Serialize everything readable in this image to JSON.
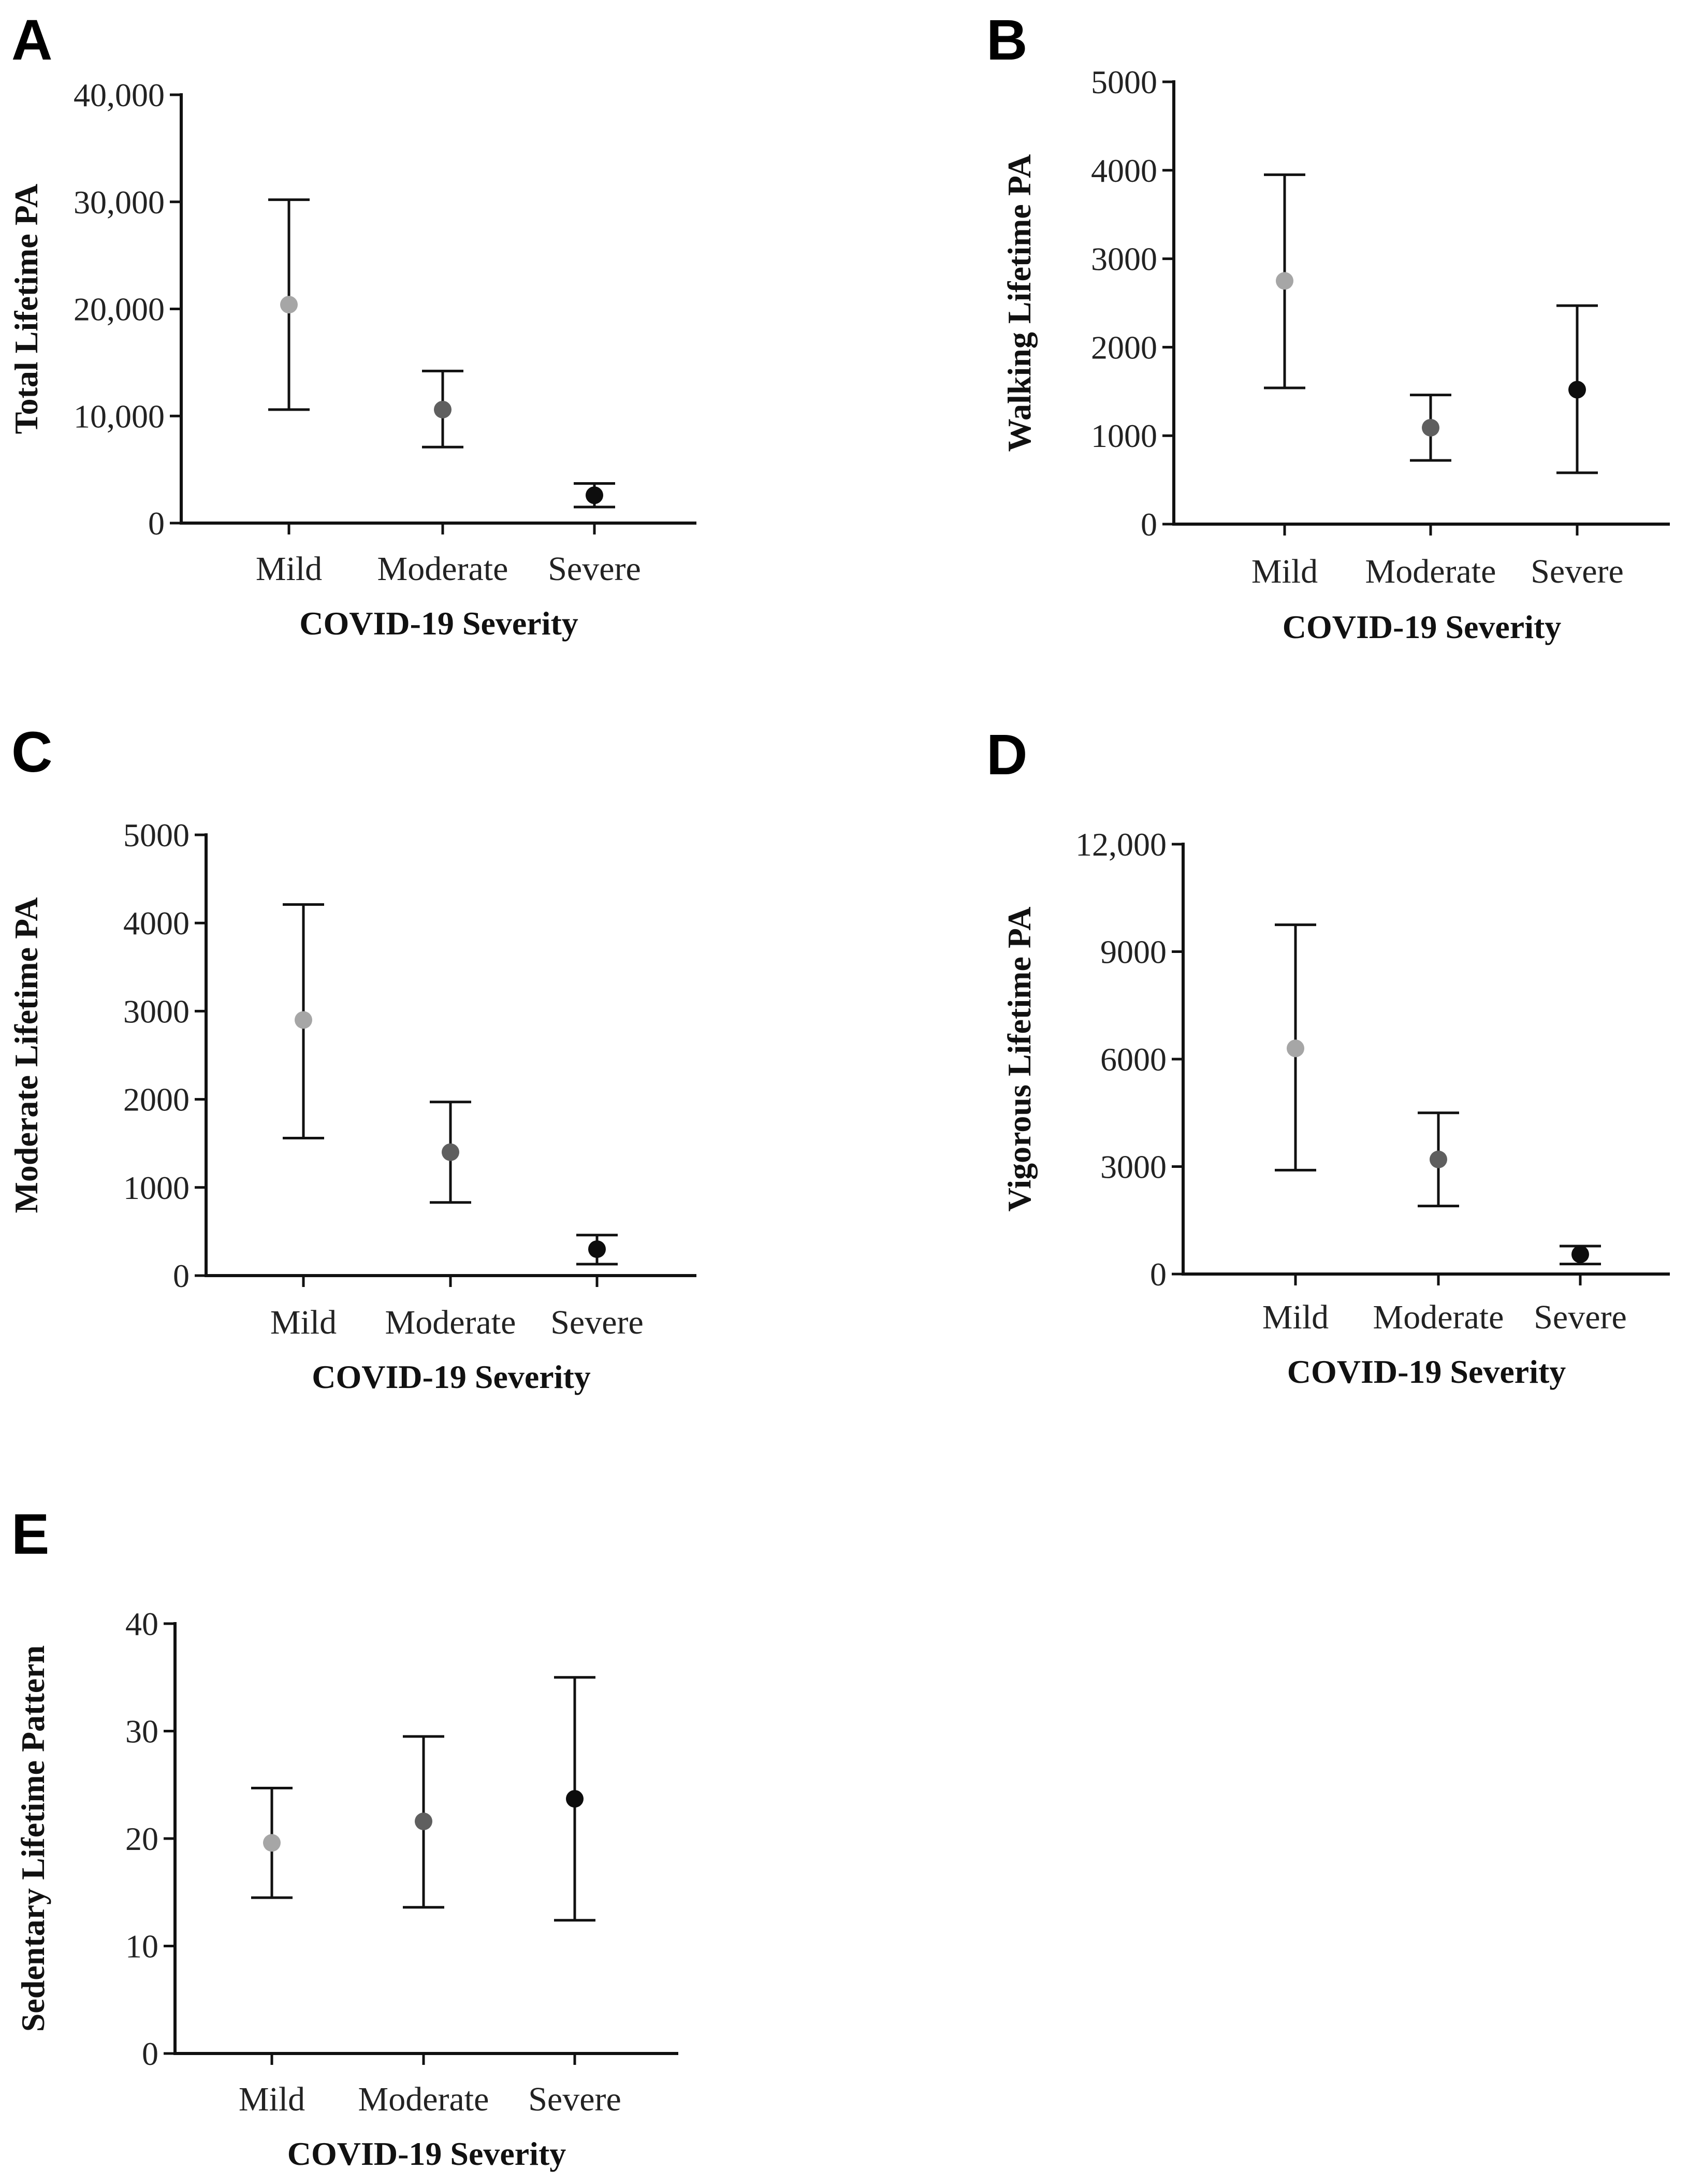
{
  "colors": {
    "Mild": "#a6a6a6",
    "Moderate": "#5f5f5f",
    "Severe": "#0d0d0d",
    "axis": "#111111"
  },
  "chart_data": [
    {
      "panel": "A",
      "type": "scatter",
      "title": "",
      "xlabel": "COVID-19 Severity",
      "ylabel": "Total Lifetime PA",
      "categories": [
        "Mild",
        "Moderate",
        "Severe"
      ],
      "values": [
        20400,
        10600,
        2600
      ],
      "error_low": [
        10600,
        7100,
        1500
      ],
      "error_high": [
        30200,
        14200,
        3700
      ],
      "ylim": [
        0,
        40000
      ],
      "yticks": [
        0,
        10000,
        20000,
        30000,
        40000
      ],
      "ytick_labels": [
        "0",
        "10,000",
        "20,000",
        "30,000",
        "40,000"
      ]
    },
    {
      "panel": "B",
      "type": "scatter",
      "title": "",
      "xlabel": "COVID-19 Severity",
      "ylabel": "Walking Lifetime PA",
      "categories": [
        "Mild",
        "Moderate",
        "Severe"
      ],
      "values": [
        2750,
        1090,
        1520
      ],
      "error_low": [
        1540,
        720,
        580
      ],
      "error_high": [
        3950,
        1460,
        2470
      ],
      "ylim": [
        0,
        5000
      ],
      "yticks": [
        0,
        1000,
        2000,
        3000,
        4000,
        5000
      ],
      "ytick_labels": [
        "0",
        "1000",
        "2000",
        "3000",
        "4000",
        "5000"
      ]
    },
    {
      "panel": "C",
      "type": "scatter",
      "title": "",
      "xlabel": "COVID-19 Severity",
      "ylabel": "Moderate Lifetime PA",
      "categories": [
        "Mild",
        "Moderate",
        "Severe"
      ],
      "values": [
        2900,
        1400,
        300
      ],
      "error_low": [
        1560,
        830,
        130
      ],
      "error_high": [
        4210,
        1970,
        460
      ],
      "ylim": [
        0,
        5000
      ],
      "yticks": [
        0,
        1000,
        2000,
        3000,
        4000,
        5000
      ],
      "ytick_labels": [
        "0",
        "1000",
        "2000",
        "3000",
        "4000",
        "5000"
      ]
    },
    {
      "panel": "D",
      "type": "scatter",
      "title": "",
      "xlabel": "COVID-19 Severity",
      "ylabel": "Vigorous Lifetime PA",
      "categories": [
        "Mild",
        "Moderate",
        "Severe"
      ],
      "values": [
        6300,
        3200,
        550
      ],
      "error_low": [
        2900,
        1900,
        280
      ],
      "error_high": [
        9750,
        4500,
        780
      ],
      "ylim": [
        0,
        12000
      ],
      "yticks": [
        0,
        3000,
        6000,
        9000,
        12000
      ],
      "ytick_labels": [
        "0",
        "3000",
        "6000",
        "9000",
        "12,000"
      ]
    },
    {
      "panel": "E",
      "type": "scatter",
      "title": "",
      "xlabel": "COVID-19 Severity",
      "ylabel": "Sedentary Lifetime Pattern",
      "categories": [
        "Mild",
        "Moderate",
        "Severe"
      ],
      "values": [
        19.6,
        21.6,
        23.7
      ],
      "error_low": [
        14.5,
        13.6,
        12.4
      ],
      "error_high": [
        24.7,
        29.5,
        35.0
      ],
      "ylim": [
        0,
        40
      ],
      "yticks": [
        0,
        10,
        20,
        30,
        40
      ],
      "ytick_labels": [
        "0",
        "10",
        "20",
        "30",
        "40"
      ]
    }
  ]
}
